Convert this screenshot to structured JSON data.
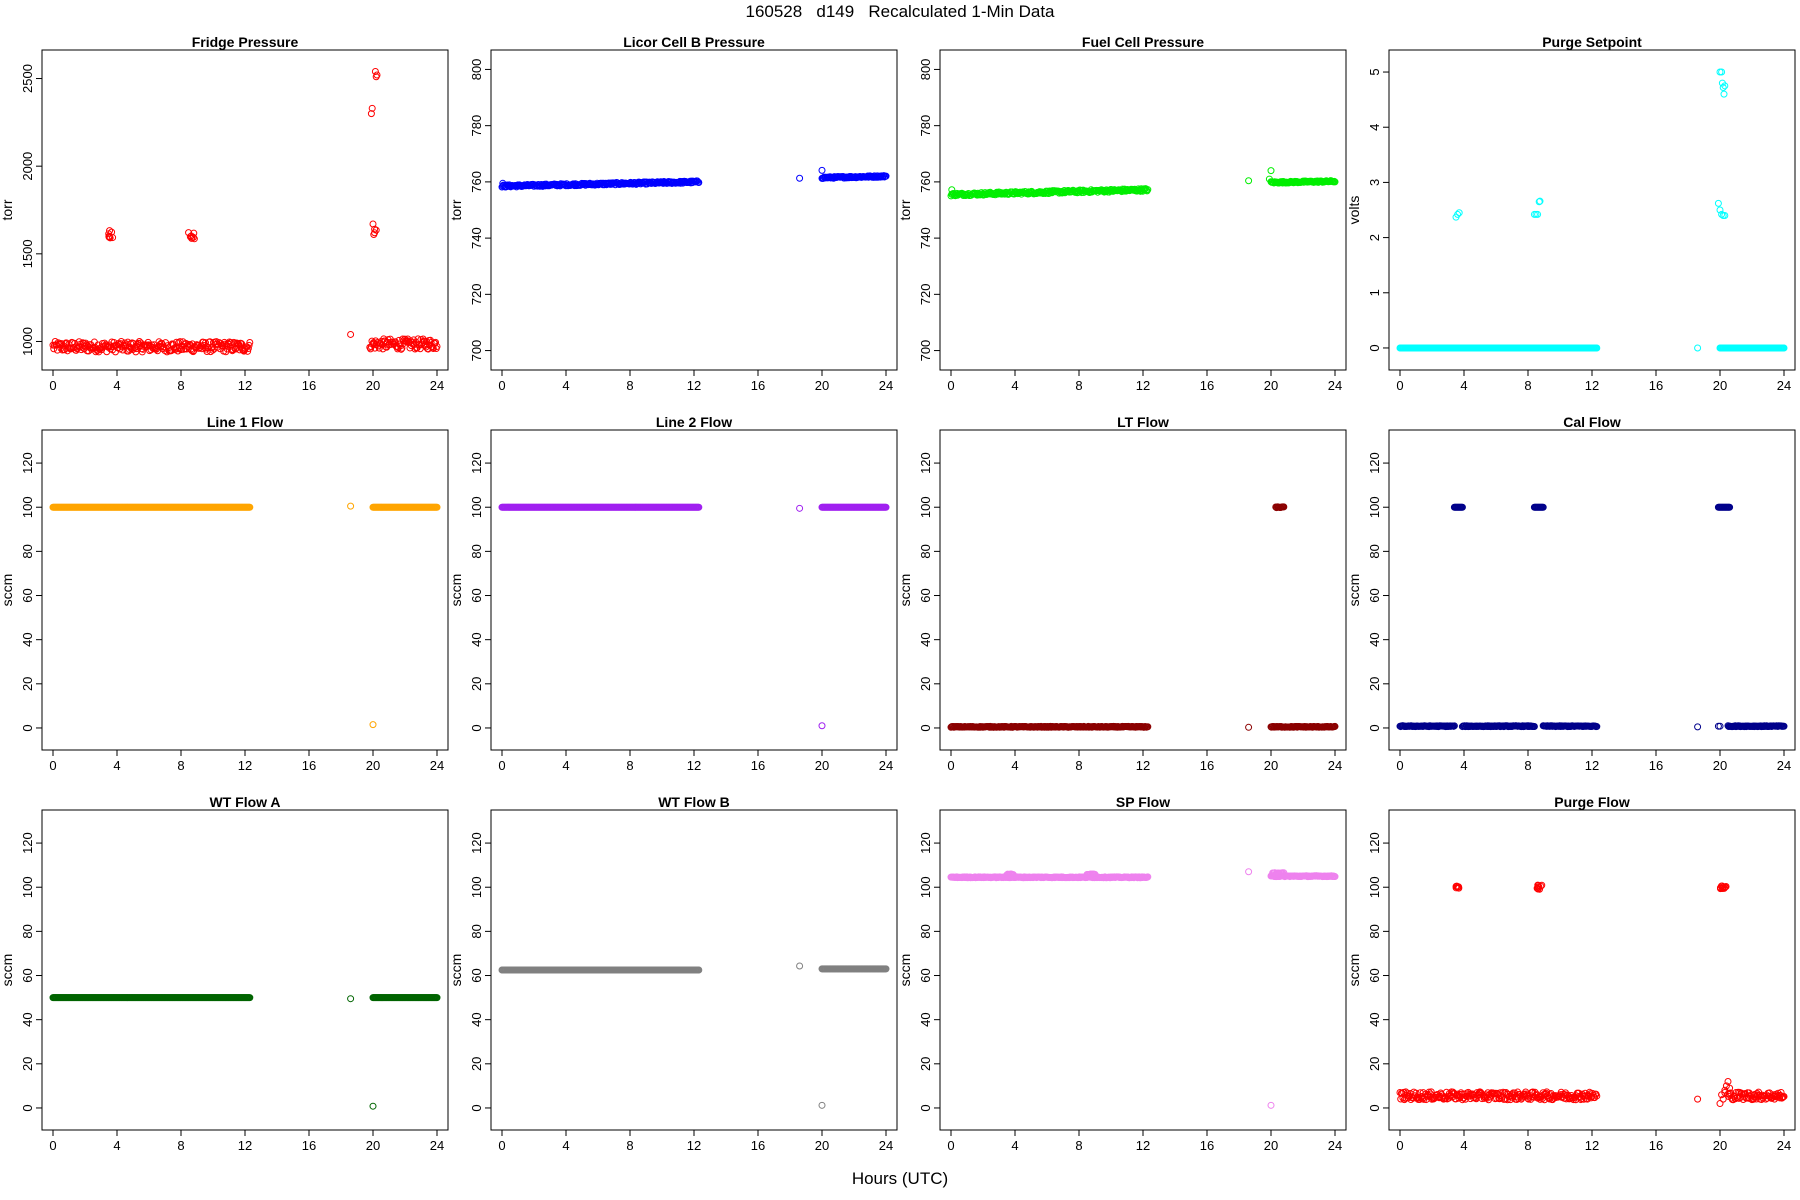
{
  "title": "160528   d149   Recalculated 1-Min Data",
  "xlabel": "Hours (UTC)",
  "chart_data": [
    {
      "type": "scatter",
      "title": "Fridge Pressure",
      "ylabel": "torr",
      "color": "#ff0000",
      "ylim": [
        900,
        2600
      ],
      "yticks": [
        1000,
        1500,
        2000,
        2500
      ],
      "xlim": [
        0,
        24
      ],
      "xticks": [
        0,
        4,
        8,
        12,
        16,
        20,
        24
      ],
      "series": [
        {
          "kind": "band",
          "x": [
            0,
            12.3
          ],
          "y": [
            970,
            970
          ],
          "jitter": 30
        },
        {
          "kind": "band",
          "x": [
            19.8,
            24
          ],
          "y": [
            985,
            985
          ],
          "jitter": 30
        },
        {
          "kind": "cluster",
          "x": 3.6,
          "y": 1615,
          "n": 8,
          "dx": 0.15,
          "dy": 25
        },
        {
          "kind": "cluster",
          "x": 8.7,
          "y": 1605,
          "n": 8,
          "dx": 0.25,
          "dy": 20
        },
        {
          "kind": "points",
          "x": [
            18.6,
            19.9,
            19.95,
            20.0,
            20.05,
            20.1,
            20.15,
            20.2,
            20.25,
            20.1,
            20.2
          ],
          "y": [
            1040,
            2300,
            2330,
            1670,
            1610,
            1640,
            2540,
            2510,
            2520,
            1620,
            1635
          ]
        }
      ]
    },
    {
      "type": "scatter",
      "title": "Licor Cell B Pressure",
      "ylabel": "torr",
      "color": "#0000ff",
      "ylim": [
        697,
        803
      ],
      "yticks": [
        700,
        720,
        740,
        760,
        780,
        800
      ],
      "xlim": [
        0,
        24
      ],
      "xticks": [
        0,
        4,
        8,
        12,
        16,
        20,
        24
      ],
      "series": [
        {
          "kind": "band",
          "x": [
            0,
            12.3
          ],
          "y": [
            758.5,
            760
          ],
          "jitter": 0.4
        },
        {
          "kind": "band",
          "x": [
            20,
            24
          ],
          "y": [
            761.5,
            762
          ],
          "jitter": 0.3
        },
        {
          "kind": "points",
          "x": [
            0.05,
            18.6,
            20.0
          ],
          "y": [
            759.5,
            761.3,
            764.1
          ]
        }
      ]
    },
    {
      "type": "scatter",
      "title": "Fuel Cell Pressure",
      "ylabel": "torr",
      "color": "#00ee00",
      "ylim": [
        697,
        803
      ],
      "yticks": [
        700,
        720,
        740,
        760,
        780,
        800
      ],
      "xlim": [
        0,
        24
      ],
      "xticks": [
        0,
        4,
        8,
        12,
        16,
        20,
        24
      ],
      "series": [
        {
          "kind": "band",
          "x": [
            0,
            12.3
          ],
          "y": [
            755.5,
            757.2
          ],
          "jitter": 0.5
        },
        {
          "kind": "band",
          "x": [
            20,
            24
          ],
          "y": [
            759.8,
            760.2
          ],
          "jitter": 0.3
        },
        {
          "kind": "points",
          "x": [
            0.05,
            18.6,
            20.0,
            19.9
          ],
          "y": [
            757.2,
            760.4,
            764,
            761
          ]
        }
      ]
    },
    {
      "type": "scatter",
      "title": "Purge Setpoint",
      "ylabel": "volts",
      "color": "#00ffff",
      "ylim": [
        -0.2,
        5.2
      ],
      "yticks": [
        0,
        1,
        2,
        3,
        4,
        5
      ],
      "xlim": [
        0,
        24
      ],
      "xticks": [
        0,
        4,
        8,
        12,
        16,
        20,
        24
      ],
      "series": [
        {
          "kind": "band",
          "x": [
            0,
            12.3
          ],
          "y": [
            0,
            0
          ],
          "jitter": 0
        },
        {
          "kind": "band",
          "x": [
            20,
            24
          ],
          "y": [
            0,
            0
          ],
          "jitter": 0
        },
        {
          "kind": "points",
          "x": [
            3.5,
            3.6,
            3.7,
            8.4,
            8.5,
            8.6,
            8.7,
            8.75,
            18.6,
            19.9,
            20.0,
            20.1,
            20.2,
            20.3,
            20.2,
            20.25,
            20.3,
            20.0,
            20.1,
            20.15
          ],
          "y": [
            2.37,
            2.42,
            2.45,
            2.42,
            2.42,
            2.42,
            2.65,
            2.66,
            0.0,
            2.62,
            2.5,
            2.42,
            2.4,
            2.4,
            4.72,
            4.6,
            4.75,
            5.0,
            5.0,
            4.8
          ]
        }
      ]
    },
    {
      "type": "scatter",
      "title": "Line 1 Flow",
      "ylabel": "sccm",
      "color": "#ffa500",
      "ylim": [
        -5,
        130
      ],
      "yticks": [
        0,
        20,
        40,
        60,
        80,
        100,
        120
      ],
      "xlim": [
        0,
        24
      ],
      "xticks": [
        0,
        4,
        8,
        12,
        16,
        20,
        24
      ],
      "series": [
        {
          "kind": "band",
          "x": [
            0,
            12.3
          ],
          "y": [
            100,
            100
          ],
          "jitter": 0
        },
        {
          "kind": "band",
          "x": [
            20,
            24
          ],
          "y": [
            100,
            100
          ],
          "jitter": 0
        },
        {
          "kind": "points",
          "x": [
            18.6,
            20.0
          ],
          "y": [
            100.5,
            1.5
          ]
        }
      ]
    },
    {
      "type": "scatter",
      "title": "Line 2 Flow",
      "ylabel": "sccm",
      "color": "#a020f0",
      "ylim": [
        -5,
        130
      ],
      "yticks": [
        0,
        20,
        40,
        60,
        80,
        100,
        120
      ],
      "xlim": [
        0,
        24
      ],
      "xticks": [
        0,
        4,
        8,
        12,
        16,
        20,
        24
      ],
      "series": [
        {
          "kind": "band",
          "x": [
            0,
            12.3
          ],
          "y": [
            100,
            100
          ],
          "jitter": 0
        },
        {
          "kind": "band",
          "x": [
            20,
            24
          ],
          "y": [
            100,
            100
          ],
          "jitter": 0
        },
        {
          "kind": "points",
          "x": [
            18.6,
            20.0
          ],
          "y": [
            99.5,
            1.0
          ]
        }
      ]
    },
    {
      "type": "scatter",
      "title": "LT Flow",
      "ylabel": "sccm",
      "color": "#8b0000",
      "ylim": [
        -5,
        130
      ],
      "yticks": [
        0,
        20,
        40,
        60,
        80,
        100,
        120
      ],
      "xlim": [
        0,
        24
      ],
      "xticks": [
        0,
        4,
        8,
        12,
        16,
        20,
        24
      ],
      "series": [
        {
          "kind": "band",
          "x": [
            0,
            12.3
          ],
          "y": [
            0.5,
            0.5
          ],
          "jitter": 0.2
        },
        {
          "kind": "band",
          "x": [
            20,
            24
          ],
          "y": [
            0.5,
            0.5
          ],
          "jitter": 0.2
        },
        {
          "kind": "points",
          "x": [
            18.6
          ],
          "y": [
            0.3
          ]
        },
        {
          "kind": "band",
          "x": [
            20.3,
            20.8
          ],
          "y": [
            100,
            100
          ],
          "jitter": 0.2
        }
      ]
    },
    {
      "type": "scatter",
      "title": "Cal Flow",
      "ylabel": "sccm",
      "color": "#00008b",
      "ylim": [
        -5,
        130
      ],
      "yticks": [
        0,
        20,
        40,
        60,
        80,
        100,
        120
      ],
      "xlim": [
        0,
        24
      ],
      "xticks": [
        0,
        4,
        8,
        12,
        16,
        20,
        24
      ],
      "series": [
        {
          "kind": "band",
          "x": [
            0,
            3.4
          ],
          "y": [
            0.8,
            0.8
          ],
          "jitter": 0.2
        },
        {
          "kind": "band",
          "x": [
            3.9,
            8.4
          ],
          "y": [
            0.8,
            0.8
          ],
          "jitter": 0.2
        },
        {
          "kind": "band",
          "x": [
            8.95,
            12.3
          ],
          "y": [
            0.8,
            0.8
          ],
          "jitter": 0.2
        },
        {
          "kind": "band",
          "x": [
            20.5,
            24
          ],
          "y": [
            0.8,
            0.8
          ],
          "jitter": 0.2
        },
        {
          "kind": "band",
          "x": [
            3.4,
            3.9
          ],
          "y": [
            100,
            100
          ],
          "jitter": 0
        },
        {
          "kind": "band",
          "x": [
            8.4,
            8.95
          ],
          "y": [
            100,
            100
          ],
          "jitter": 0
        },
        {
          "kind": "band",
          "x": [
            19.9,
            20.6
          ],
          "y": [
            100,
            100
          ],
          "jitter": 0
        },
        {
          "kind": "points",
          "x": [
            18.6,
            19.9,
            20.0
          ],
          "y": [
            0.5,
            0.8,
            0.8
          ]
        }
      ]
    },
    {
      "type": "scatter",
      "title": "WT Flow A",
      "ylabel": "sccm",
      "color": "#006400",
      "ylim": [
        -5,
        130
      ],
      "yticks": [
        0,
        20,
        40,
        60,
        80,
        100,
        120
      ],
      "xlim": [
        0,
        24
      ],
      "xticks": [
        0,
        4,
        8,
        12,
        16,
        20,
        24
      ],
      "series": [
        {
          "kind": "band",
          "x": [
            0,
            12.3
          ],
          "y": [
            50,
            50
          ],
          "jitter": 0
        },
        {
          "kind": "band",
          "x": [
            20,
            24
          ],
          "y": [
            50,
            50
          ],
          "jitter": 0
        },
        {
          "kind": "points",
          "x": [
            18.6,
            20.0
          ],
          "y": [
            49.5,
            0.8
          ]
        }
      ]
    },
    {
      "type": "scatter",
      "title": "WT Flow B",
      "ylabel": "sccm",
      "color": "#808080",
      "ylim": [
        -5,
        130
      ],
      "yticks": [
        0,
        20,
        40,
        60,
        80,
        100,
        120
      ],
      "xlim": [
        0,
        24
      ],
      "xticks": [
        0,
        4,
        8,
        12,
        16,
        20,
        24
      ],
      "series": [
        {
          "kind": "band",
          "x": [
            0,
            12.3
          ],
          "y": [
            62.5,
            62.5
          ],
          "jitter": 0
        },
        {
          "kind": "band",
          "x": [
            20,
            24
          ],
          "y": [
            63,
            63
          ],
          "jitter": 0
        },
        {
          "kind": "points",
          "x": [
            18.6,
            20.0
          ],
          "y": [
            64.3,
            1.2
          ]
        }
      ]
    },
    {
      "type": "scatter",
      "title": "SP Flow",
      "ylabel": "sccm",
      "color": "#ee82ee",
      "ylim": [
        -5,
        130
      ],
      "yticks": [
        0,
        20,
        40,
        60,
        80,
        100,
        120
      ],
      "xlim": [
        0,
        24
      ],
      "xticks": [
        0,
        4,
        8,
        12,
        16,
        20,
        24
      ],
      "series": [
        {
          "kind": "band",
          "x": [
            0,
            12.3
          ],
          "y": [
            104.5,
            104.5
          ],
          "jitter": 0.2
        },
        {
          "kind": "band",
          "x": [
            20,
            24
          ],
          "y": [
            105,
            105
          ],
          "jitter": 0.2
        },
        {
          "kind": "band",
          "x": [
            3.5,
            3.9
          ],
          "y": [
            105.8,
            105.8
          ],
          "jitter": 0.2
        },
        {
          "kind": "band",
          "x": [
            8.5,
            9.0
          ],
          "y": [
            105.8,
            105.8
          ],
          "jitter": 0.2
        },
        {
          "kind": "band",
          "x": [
            20.1,
            20.8
          ],
          "y": [
            106.3,
            106.3
          ],
          "jitter": 0.3
        },
        {
          "kind": "points",
          "x": [
            18.6,
            20.0
          ],
          "y": [
            107,
            1.2
          ]
        }
      ]
    },
    {
      "type": "scatter",
      "title": "Purge Flow",
      "ylabel": "sccm",
      "color": "#ff0000",
      "ylim": [
        -5,
        130
      ],
      "yticks": [
        0,
        20,
        40,
        60,
        80,
        100,
        120
      ],
      "xlim": [
        0,
        24
      ],
      "xticks": [
        0,
        4,
        8,
        12,
        16,
        20,
        24
      ],
      "series": [
        {
          "kind": "band",
          "x": [
            0,
            12.3
          ],
          "y": [
            5.5,
            5.5
          ],
          "jitter": 1.8
        },
        {
          "kind": "band",
          "x": [
            20.5,
            24
          ],
          "y": [
            5.5,
            5.5
          ],
          "jitter": 1.8
        },
        {
          "kind": "cluster",
          "x": 3.6,
          "y": 100,
          "n": 8,
          "dx": 0.1,
          "dy": 0.5
        },
        {
          "kind": "cluster",
          "x": 8.7,
          "y": 100,
          "n": 10,
          "dx": 0.2,
          "dy": 1.0
        },
        {
          "kind": "cluster",
          "x": 20.2,
          "y": 100,
          "n": 12,
          "dx": 0.2,
          "dy": 0.8
        },
        {
          "kind": "points",
          "x": [
            18.6,
            20.0,
            20.1,
            20.3,
            20.4,
            20.5,
            20.6,
            20.2,
            20.3
          ],
          "y": [
            4.0,
            2.0,
            6.0,
            8.0,
            10.0,
            12.0,
            9.0,
            4.0,
            7.0
          ]
        }
      ]
    }
  ]
}
